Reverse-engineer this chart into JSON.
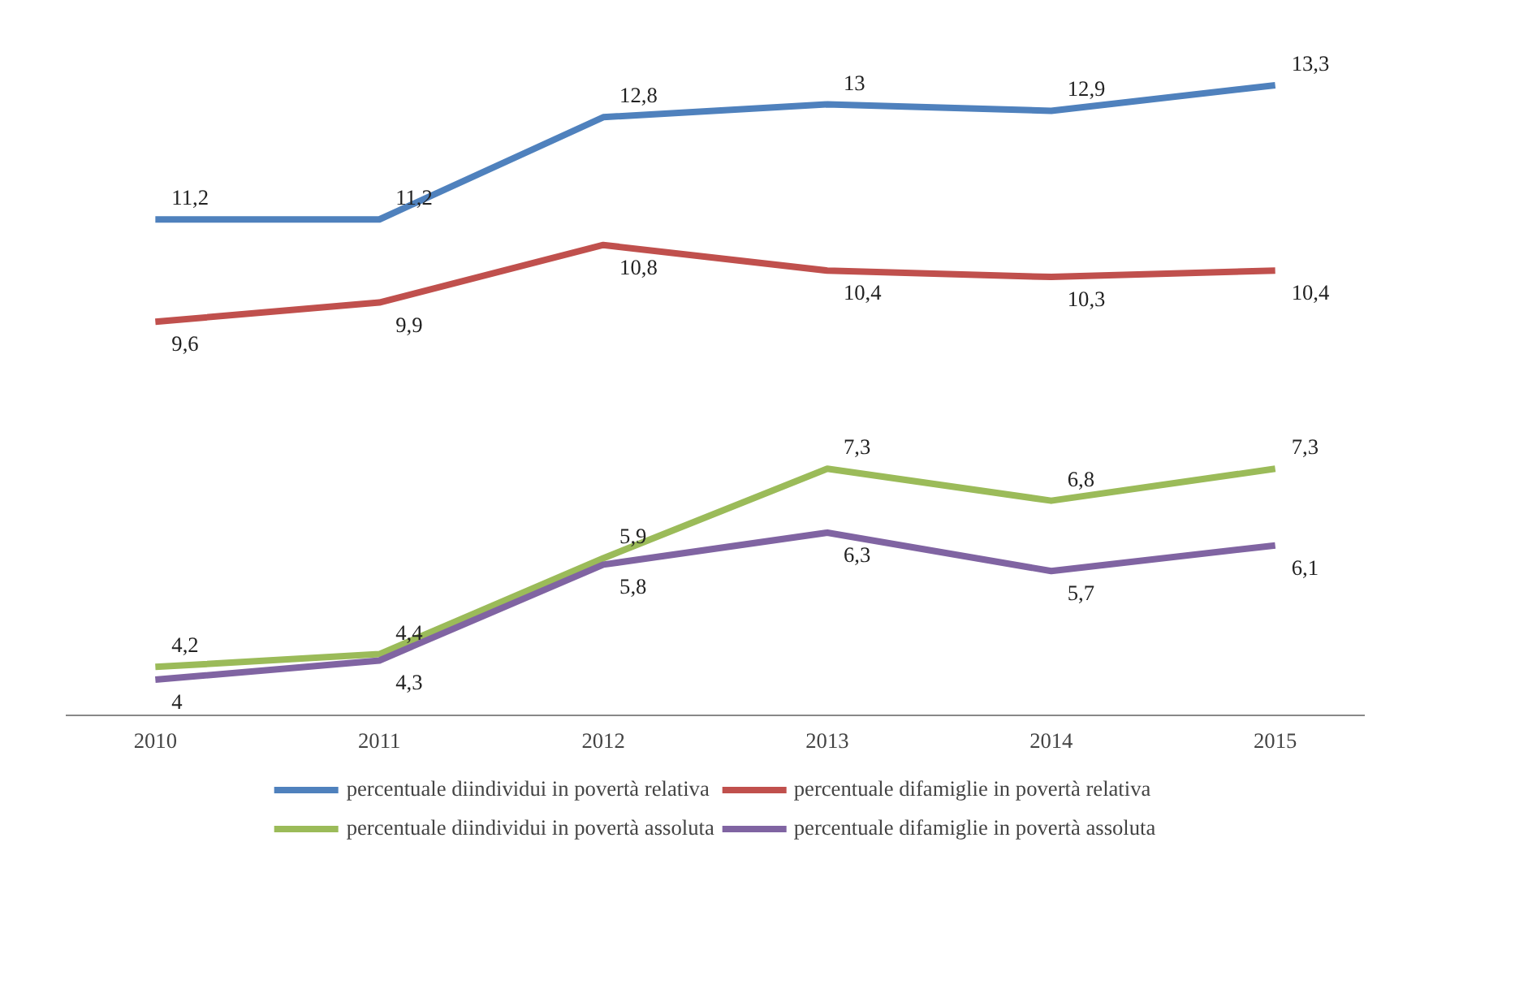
{
  "chart_data": {
    "type": "line",
    "categories": [
      "2010",
      "2011",
      "2012",
      "2013",
      "2014",
      "2015"
    ],
    "tick_labels": "x",
    "grid": false,
    "legend": "bottom",
    "line_style": "solid",
    "marker": "none",
    "series": [
      {
        "name": "percentuale diindividui in povertà relativa",
        "color": "#4f81bd",
        "values": [
          11.2,
          11.2,
          12.8,
          13,
          12.9,
          13.3
        ],
        "value_labels": [
          "11,2",
          "11,2",
          "12,8",
          "13",
          "12,9",
          "13,3"
        ]
      },
      {
        "name": "percentuale difamiglie in povertà relativa",
        "color": "#c0504d",
        "values": [
          9.6,
          9.9,
          10.8,
          10.4,
          10.3,
          10.4
        ],
        "value_labels": [
          "9,6",
          "9,9",
          "10,8",
          "10,4",
          "10,3",
          "10,4"
        ]
      },
      {
        "name": "percentuale diindividui in povertà assoluta",
        "color": "#9bbb59",
        "values": [
          4.2,
          4.4,
          5.9,
          7.3,
          6.8,
          7.3
        ],
        "value_labels": [
          "4,2",
          "4,4",
          "5,9",
          "7,3",
          "6,8",
          "7,3"
        ]
      },
      {
        "name": "percentuale difamiglie in povertà assoluta",
        "color": "#8064a2",
        "values": [
          4,
          4.3,
          5.8,
          6.3,
          5.7,
          6.1
        ],
        "value_labels": [
          "4",
          "4,3",
          "5,8",
          "6,3",
          "5,7",
          "6,1"
        ]
      }
    ]
  }
}
